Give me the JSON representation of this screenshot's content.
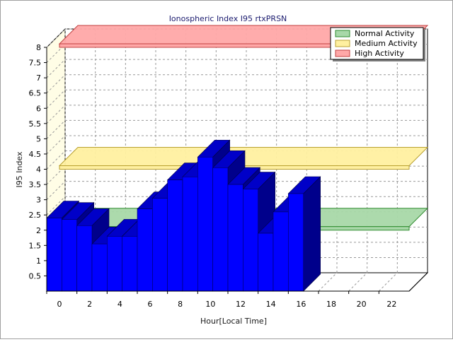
{
  "chart_data": {
    "type": "bar",
    "title": "Ionospheric Index I95 rtxPRSN",
    "xlabel": "Hour[Local Time]",
    "ylabel": "I95 Index",
    "ylim": [
      0,
      8
    ],
    "xlim": [
      0,
      24
    ],
    "y_ticks": [
      "0.5",
      "1",
      "1.5",
      "2",
      "2.5",
      "3",
      "3.5",
      "4",
      "4.5",
      "5",
      "5.5",
      "6",
      "6.5",
      "7",
      "7.5",
      "8"
    ],
    "x_ticks": [
      "0",
      "2",
      "4",
      "6",
      "8",
      "10",
      "12",
      "14",
      "16",
      "18",
      "20",
      "22"
    ],
    "grid": true,
    "hours": [
      0,
      1,
      2,
      3,
      4,
      5,
      6,
      7,
      8,
      9,
      10,
      11,
      12,
      13,
      14,
      15,
      16
    ],
    "values": [
      2.4,
      2.35,
      2.15,
      1.55,
      1.8,
      1.8,
      2.7,
      3.05,
      3.65,
      3.75,
      4.4,
      4.05,
      3.5,
      3.35,
      1.9,
      2.6,
      3.2
    ],
    "bar_color": "#0000ff",
    "bands": [
      {
        "name": "Normal Activity",
        "value": 2.0,
        "color": "#a8d8a8",
        "edge": "#2e8b2e"
      },
      {
        "name": "Medium Activity",
        "value": 4.0,
        "color": "#fff0a0",
        "edge": "#b8a030"
      },
      {
        "name": "High Activity",
        "value": 8.0,
        "color": "#ffa8a8",
        "edge": "#c04040"
      }
    ],
    "legend_position": "top-right"
  }
}
